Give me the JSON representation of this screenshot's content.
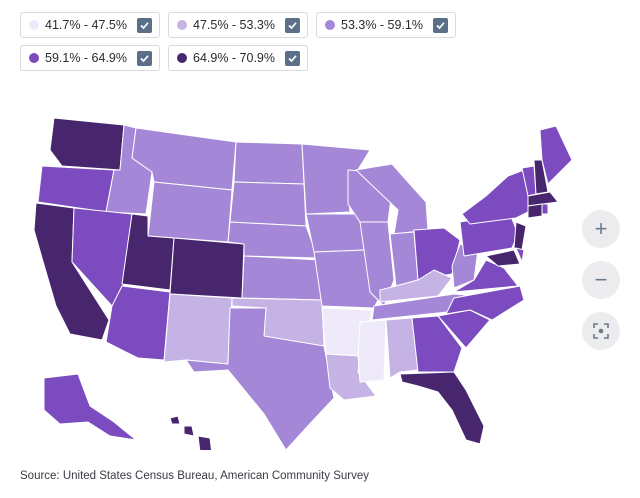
{
  "legend": [
    {
      "label": "41.7% - 47.5%",
      "color": "#efeafa",
      "checked": true
    },
    {
      "label": "47.5% - 53.3%",
      "color": "#c5b3e6",
      "checked": true
    },
    {
      "label": "53.3% - 59.1%",
      "color": "#a487d6",
      "checked": true
    },
    {
      "label": "59.1% - 64.9%",
      "color": "#7b4bbf",
      "checked": true
    },
    {
      "label": "64.9% - 70.9%",
      "color": "#47266e",
      "checked": true
    }
  ],
  "controls": {
    "zoom_in": "+",
    "zoom_out": "−",
    "reset_icon": "focus-frame-icon"
  },
  "source": "Source: United States Census Bureau, American Community Survey"
}
